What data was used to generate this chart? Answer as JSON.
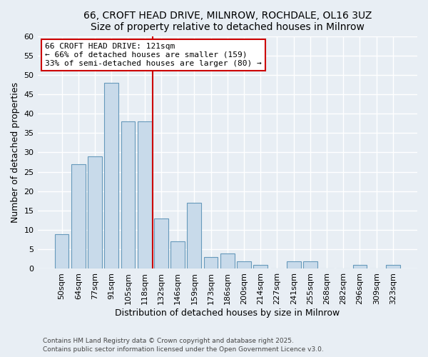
{
  "title1": "66, CROFT HEAD DRIVE, MILNROW, ROCHDALE, OL16 3UZ",
  "title2": "Size of property relative to detached houses in Milnrow",
  "xlabel": "Distribution of detached houses by size in Milnrow",
  "ylabel": "Number of detached properties",
  "bar_labels": [
    "50sqm",
    "64sqm",
    "77sqm",
    "91sqm",
    "105sqm",
    "118sqm",
    "132sqm",
    "146sqm",
    "159sqm",
    "173sqm",
    "186sqm",
    "200sqm",
    "214sqm",
    "227sqm",
    "241sqm",
    "255sqm",
    "268sqm",
    "282sqm",
    "296sqm",
    "309sqm",
    "323sqm"
  ],
  "bar_values": [
    9,
    27,
    29,
    48,
    38,
    38,
    13,
    7,
    17,
    3,
    4,
    2,
    1,
    0,
    2,
    2,
    0,
    0,
    1,
    0,
    1
  ],
  "bar_color": "#c8daea",
  "bar_edge_color": "#6699bb",
  "vline_x": 5.5,
  "vline_color": "#cc0000",
  "annotation_title": "66 CROFT HEAD DRIVE: 121sqm",
  "annotation_line1": "← 66% of detached houses are smaller (159)",
  "annotation_line2": "33% of semi-detached houses are larger (80) →",
  "annotation_box_facecolor": "#ffffff",
  "annotation_box_edgecolor": "#cc0000",
  "ylim": [
    0,
    60
  ],
  "yticks": [
    0,
    5,
    10,
    15,
    20,
    25,
    30,
    35,
    40,
    45,
    50,
    55,
    60
  ],
  "footnote1": "Contains HM Land Registry data © Crown copyright and database right 2025.",
  "footnote2": "Contains public sector information licensed under the Open Government Licence v3.0.",
  "bg_color": "#e8eef4",
  "plot_bg_color": "#e8eef4",
  "grid_color": "#ffffff",
  "title_fontsize": 10,
  "label_fontsize": 9,
  "tick_fontsize": 8
}
